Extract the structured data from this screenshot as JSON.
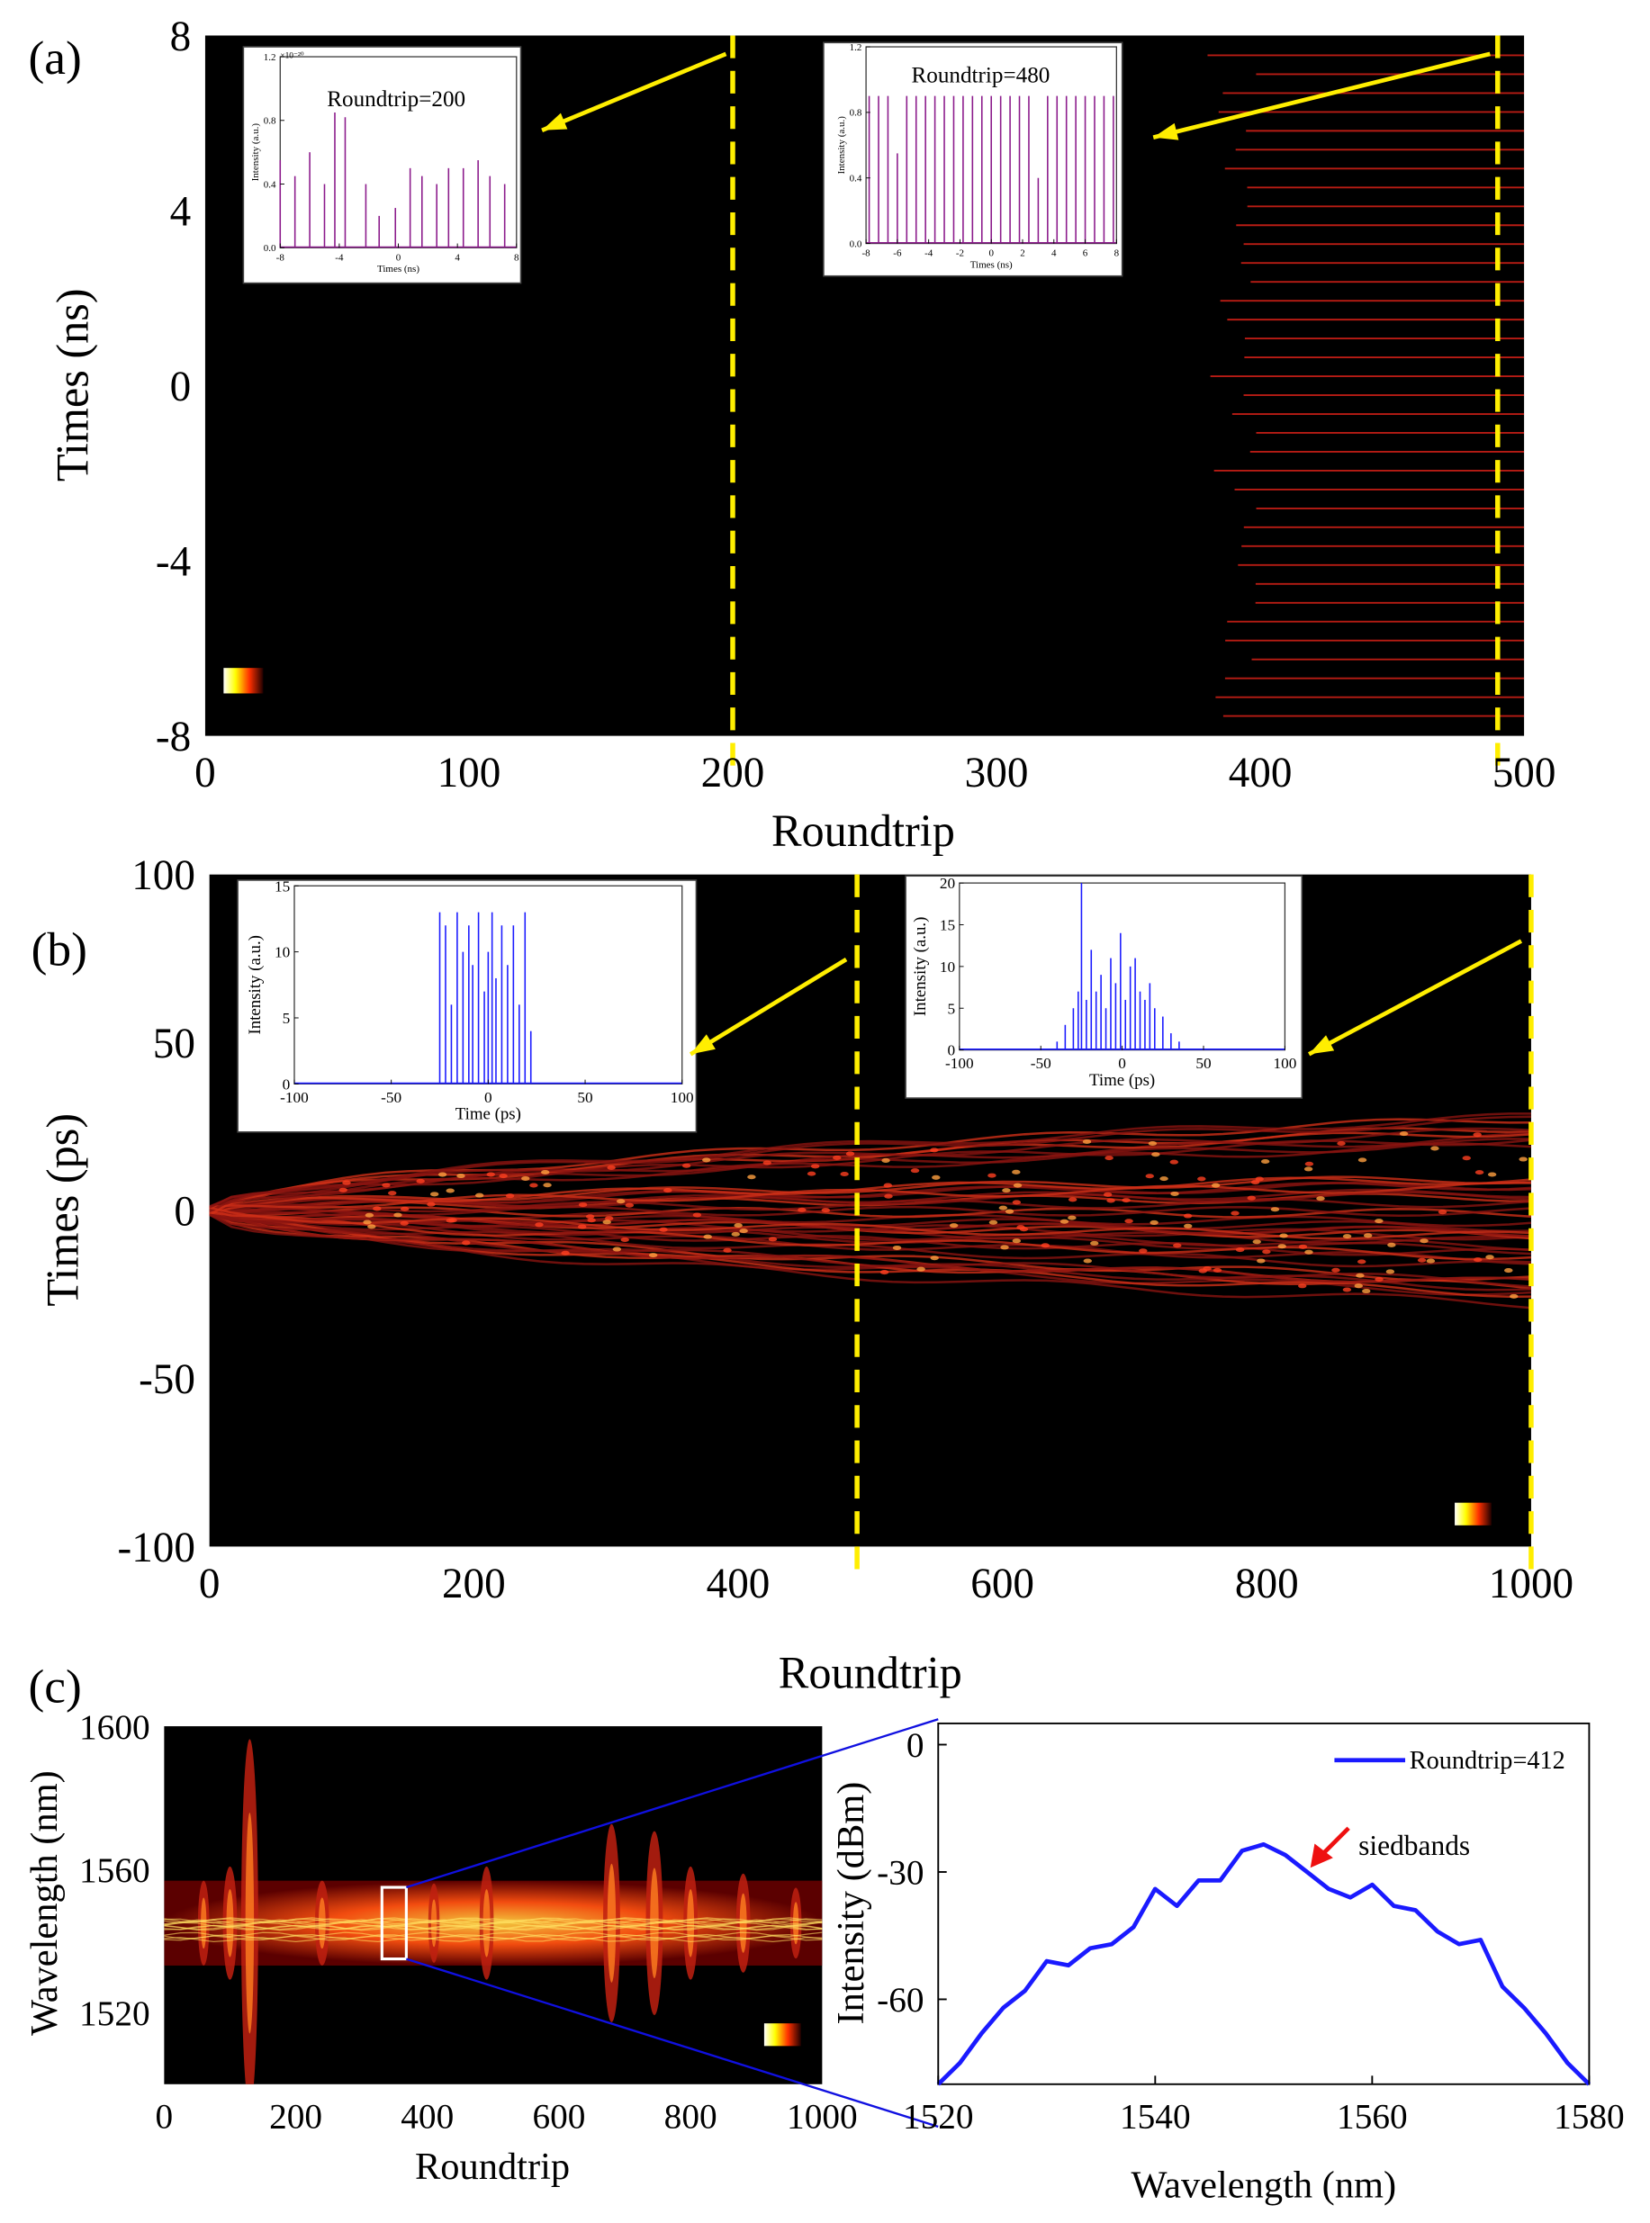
{
  "chart_data": [
    {
      "type": "heatmap",
      "panel_label": "(a)",
      "xlabel": "Roundtrip",
      "ylabel": "Times (ns)",
      "xlim": [
        0,
        500
      ],
      "xticks": [
        0,
        100,
        200,
        300,
        400,
        500
      ],
      "ylim": [
        -8,
        8
      ],
      "yticks": [
        -8,
        -4,
        0,
        4,
        8
      ],
      "colorbar_ticks": [
        0,
        1
      ],
      "marker_lines": [
        200,
        490
      ],
      "insets": [
        {
          "type": "stem",
          "title": "Roundtrip=200",
          "scale_label": "×10⁻²⁰",
          "xlabel": "Times (ns)",
          "ylabel": "Intensity (a.u.)",
          "color": "#8b1a8b",
          "xlim": [
            -8,
            8
          ],
          "xticks": [
            -8,
            -4,
            0,
            4,
            8
          ],
          "ylim": [
            0,
            1.2
          ],
          "yticks": [
            {
              "value": 0,
              "label": "0.0"
            },
            0.4,
            0.8,
            1.2
          ],
          "x": [
            -8,
            -7,
            -6,
            -5,
            -4.3,
            -3.6,
            -2.2,
            -1.3,
            -0.2,
            0.8,
            1.6,
            2.6,
            3.4,
            4.4,
            5.4,
            6.2,
            7.2
          ],
          "values": [
            0.55,
            0.45,
            0.6,
            0.4,
            0.85,
            0.82,
            0.4,
            0.2,
            0.25,
            0.5,
            0.45,
            0.4,
            0.5,
            0.5,
            0.55,
            0.45,
            0.4
          ]
        },
        {
          "type": "stem",
          "title": "Roundtrip=480",
          "xlabel": "Times (ns)",
          "ylabel": "Intensity (a.u.)",
          "color": "#8b1a8b",
          "xlim": [
            -8,
            8
          ],
          "xticks": [
            -8,
            -6,
            -4,
            -2,
            0,
            2,
            4,
            6,
            8
          ],
          "ylim": [
            0,
            1.2
          ],
          "yticks": [
            {
              "value": 0,
              "label": "0.0"
            },
            0.4,
            0.8,
            1.2
          ],
          "x": [
            -7.8,
            -7.2,
            -6.6,
            -6,
            -5.4,
            -4.8,
            -4.2,
            -3.6,
            -3,
            -2.4,
            -1.8,
            -1.2,
            -0.6,
            0,
            0.6,
            1.2,
            1.8,
            2.4,
            3,
            3.6,
            4.2,
            4.8,
            5.4,
            6,
            6.6,
            7.2,
            7.8
          ],
          "values": [
            0.9,
            0.9,
            0.9,
            0.55,
            0.9,
            0.9,
            0.9,
            0.9,
            0.9,
            0.9,
            0.9,
            0.9,
            0.9,
            0.9,
            0.9,
            0.9,
            0.9,
            0.9,
            0.4,
            0.9,
            0.9,
            0.9,
            0.9,
            0.9,
            0.9,
            0.9,
            0.9
          ]
        }
      ]
    },
    {
      "type": "heatmap",
      "panel_label": "(b)",
      "xlabel": "Roundtrip",
      "ylabel": "Times (ps)",
      "xlim": [
        0,
        1000
      ],
      "xticks": [
        0,
        200,
        400,
        600,
        800,
        1000
      ],
      "ylim": [
        -100,
        100
      ],
      "yticks": [
        -100,
        -50,
        0,
        50,
        100
      ],
      "colorbar_ticks": [
        0,
        1
      ],
      "marker_lines": [
        490,
        1000
      ],
      "insets": [
        {
          "type": "stem",
          "xlabel": "Time (ps)",
          "ylabel": "Intensity (a.u.)",
          "color": "#1a1aff",
          "xlim": [
            -100,
            100
          ],
          "xticks": [
            -100,
            -50,
            0,
            50,
            100
          ],
          "ylim": [
            0,
            15
          ],
          "yticks": [
            0,
            5,
            10,
            15
          ],
          "x": [
            -25,
            -22,
            -19,
            -16,
            -13,
            -10,
            -8,
            -5,
            -2,
            0,
            2,
            4,
            7,
            10,
            13,
            16,
            19,
            22
          ],
          "values": [
            13,
            12,
            6,
            13,
            10,
            12,
            9,
            13,
            7,
            10,
            13,
            8,
            12,
            9,
            12,
            6,
            13,
            4
          ]
        },
        {
          "type": "stem",
          "xlabel": "Time (ps)",
          "ylabel": "Intensity (a.u.)",
          "color": "#1a1aff",
          "xlim": [
            -100,
            100
          ],
          "xticks": [
            -100,
            -50,
            0,
            50,
            100
          ],
          "ylim": [
            0,
            20
          ],
          "yticks": [
            0,
            5,
            10,
            15,
            20
          ],
          "x": [
            -40,
            -35,
            -30,
            -27,
            -25,
            -22,
            -19,
            -16,
            -13,
            -10,
            -7,
            -4,
            -1,
            2,
            5,
            8,
            11,
            14,
            17,
            20,
            25,
            30,
            35
          ],
          "values": [
            1,
            3,
            5,
            7,
            20,
            6,
            12,
            7,
            9,
            5,
            11,
            8,
            14,
            6,
            10,
            11,
            7,
            6,
            8,
            5,
            4,
            2,
            1
          ]
        }
      ]
    },
    {
      "type": "heatmap",
      "panel_label": "(c)",
      "xlabel": "Roundtrip",
      "ylabel": "Wavelength (nm)",
      "xlim": [
        0,
        1000
      ],
      "xticks": [
        0,
        200,
        400,
        600,
        800,
        1000
      ],
      "ylim": [
        1500,
        1600
      ],
      "yticks": [
        1520,
        1560,
        1600
      ],
      "colorbar_ticks": [
        0,
        1
      ],
      "selection_box": {
        "x": [
          331,
          368
        ],
        "y": [
          1535,
          1555
        ]
      }
    },
    {
      "type": "line",
      "xlabel": "Wavelength (nm)",
      "ylabel": "Intensity (dBm)",
      "xlim": [
        1520,
        1580
      ],
      "xticks": [
        1520,
        1540,
        1560,
        1580
      ],
      "ylim": [
        -80,
        5
      ],
      "yticks": [
        -60,
        -30,
        0
      ],
      "annotation": "siedbands",
      "legend": "upper right",
      "x": [
        1520,
        1522,
        1524,
        1526,
        1528,
        1530,
        1532,
        1534,
        1536,
        1538,
        1540,
        1542,
        1544,
        1546,
        1548,
        1550,
        1552,
        1554,
        1556,
        1558,
        1560,
        1562,
        1564,
        1566,
        1568,
        1570,
        1572,
        1574,
        1576,
        1578,
        1580
      ],
      "series": [
        {
          "name": "Roundtrip=412",
          "color": "#1a1aff",
          "values": [
            -80,
            -75,
            -68,
            -62,
            -58,
            -51,
            -52,
            -48,
            -47,
            -43,
            -34,
            -38,
            -32,
            -32,
            -25,
            -23.5,
            -26,
            -30,
            -34,
            -36,
            -33,
            -38,
            -39,
            -44,
            -47,
            -46,
            -57,
            -62,
            -68,
            -75,
            -80
          ]
        }
      ]
    }
  ]
}
